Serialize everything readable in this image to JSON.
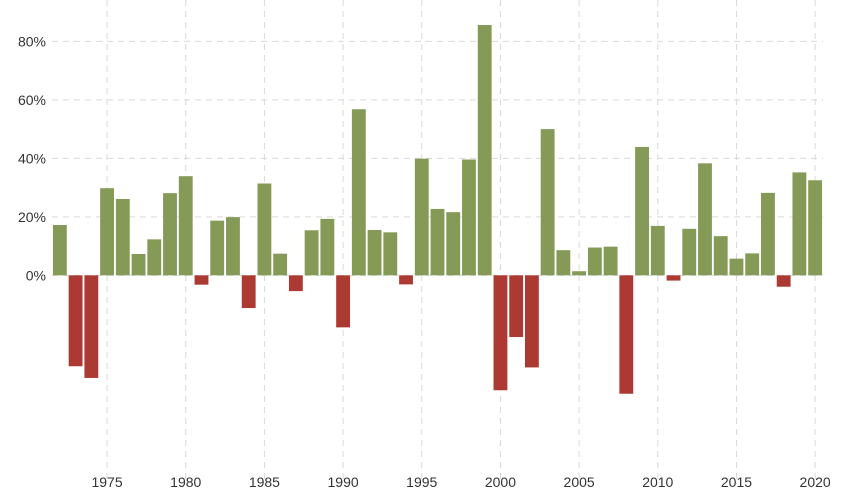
{
  "chart_data": {
    "type": "bar",
    "title": "",
    "xlabel": "",
    "ylabel": "",
    "ylim": [
      -70,
      88
    ],
    "y_ticks": [
      0,
      20,
      40,
      60,
      80
    ],
    "y_tick_labels": [
      "0%",
      "20%",
      "40%",
      "60%",
      "80%"
    ],
    "x_ticks": [
      1975,
      1980,
      1985,
      1990,
      1995,
      2000,
      2005,
      2010,
      2015,
      2020
    ],
    "x_tick_labels": [
      "1975",
      "1980",
      "1985",
      "1990",
      "1995",
      "2000",
      "2005",
      "2010",
      "2015",
      "2020"
    ],
    "grid": true,
    "colors": {
      "positive": "#849a56",
      "negative": "#ac3a32",
      "grid": "#d9d9d9",
      "text": "#333333"
    },
    "years": [
      1972,
      1973,
      1974,
      1975,
      1976,
      1977,
      1978,
      1979,
      1980,
      1981,
      1982,
      1983,
      1984,
      1985,
      1986,
      1987,
      1988,
      1989,
      1990,
      1991,
      1992,
      1993,
      1994,
      1995,
      1996,
      1997,
      1998,
      1999,
      2000,
      2001,
      2002,
      2003,
      2004,
      2005,
      2006,
      2007,
      2008,
      2009,
      2010,
      2011,
      2012,
      2013,
      2014,
      2015,
      2016,
      2017,
      2018,
      2019,
      2020
    ],
    "values": [
      17.2,
      -31.1,
      -35.1,
      29.8,
      26.1,
      7.3,
      12.3,
      28.1,
      33.9,
      -3.2,
      18.7,
      19.9,
      -11.2,
      31.4,
      7.4,
      -5.4,
      15.4,
      19.3,
      -17.8,
      56.8,
      15.5,
      14.7,
      -3.1,
      39.9,
      22.7,
      21.6,
      39.6,
      85.6,
      -39.3,
      -21.1,
      -31.5,
      50.0,
      8.6,
      1.4,
      9.5,
      9.8,
      -40.5,
      43.9,
      16.9,
      -1.8,
      15.9,
      38.3,
      13.4,
      5.7,
      7.5,
      28.2,
      -3.9,
      35.2,
      32.5
    ]
  }
}
